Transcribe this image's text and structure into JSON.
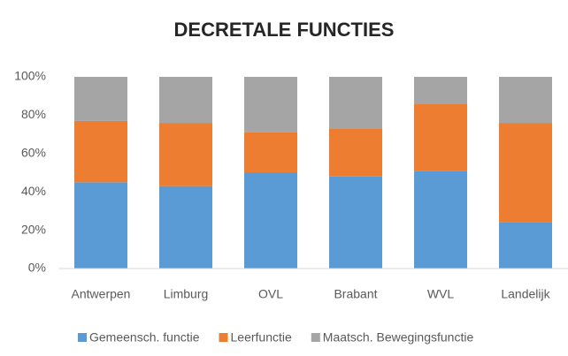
{
  "chart_data": {
    "type": "stacked-bar",
    "title": "DECRETALE FUNCTIES",
    "categories": [
      "Antwerpen",
      "Limburg",
      "OVL",
      "Brabant",
      "WVL",
      "Landelijk"
    ],
    "series": [
      {
        "name": "Gemeensch. functie",
        "color": "#5b9bd5",
        "values": [
          45,
          43,
          50,
          48,
          51,
          24
        ]
      },
      {
        "name": "Leerfunctie",
        "color": "#ed7d31",
        "values": [
          32,
          33,
          21,
          25,
          35,
          52
        ]
      },
      {
        "name": "Maatsch. Bewegingsfunctie",
        "color": "#a5a5a5",
        "values": [
          23,
          24,
          29,
          27,
          14,
          24
        ]
      }
    ],
    "ylim": [
      0,
      100
    ],
    "yticks": [
      {
        "value": 0,
        "label": "0%"
      },
      {
        "value": 20,
        "label": "20%"
      },
      {
        "value": 40,
        "label": "40%"
      },
      {
        "value": 60,
        "label": "60%"
      },
      {
        "value": 80,
        "label": "80%"
      },
      {
        "value": 100,
        "label": "100%"
      }
    ],
    "legend": "bottom"
  }
}
